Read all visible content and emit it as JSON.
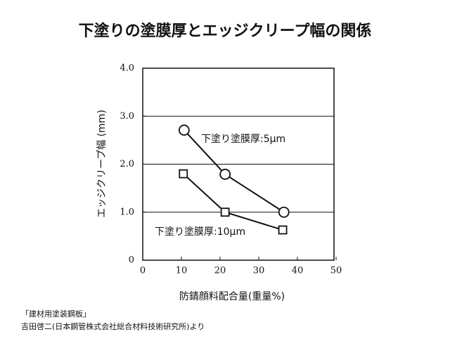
{
  "chart_data": {
    "type": "line",
    "title": "下塗りの塗膜厚とエッジクリープ幅の関係",
    "ylabel": "エッジクリープ幅 (mm)",
    "xlabel": "防錆顔料配合量(重量%)",
    "xlim": [
      0,
      50
    ],
    "xticks": [
      0,
      10,
      20,
      30,
      40,
      50
    ],
    "ylim": [
      0,
      4
    ],
    "yticks": [
      0,
      {
        "value": 1,
        "label": "1.0"
      },
      {
        "value": 2,
        "label": "2.0"
      },
      {
        "value": 3,
        "label": "3.0"
      },
      {
        "value": 4,
        "label": "4.0"
      }
    ],
    "grid": true,
    "series": [
      {
        "name": "下塗り塗膜厚:5μm",
        "color": "#111111",
        "marker": "circle",
        "x": [
          10.7,
          21.3,
          36.5
        ],
        "values": [
          2.71,
          1.79,
          1.0
        ]
      },
      {
        "name": "下塗り塗膜厚:10μm",
        "color": "#111111",
        "marker": "square",
        "x": [
          10.5,
          21.3,
          36.2
        ],
        "values": [
          1.8,
          1.0,
          0.63
        ]
      }
    ],
    "source": [
      "「建材用塗装鋼板」",
      "吉田啓二(日本鋼管株式会社総合材料技術研究所)より"
    ]
  }
}
